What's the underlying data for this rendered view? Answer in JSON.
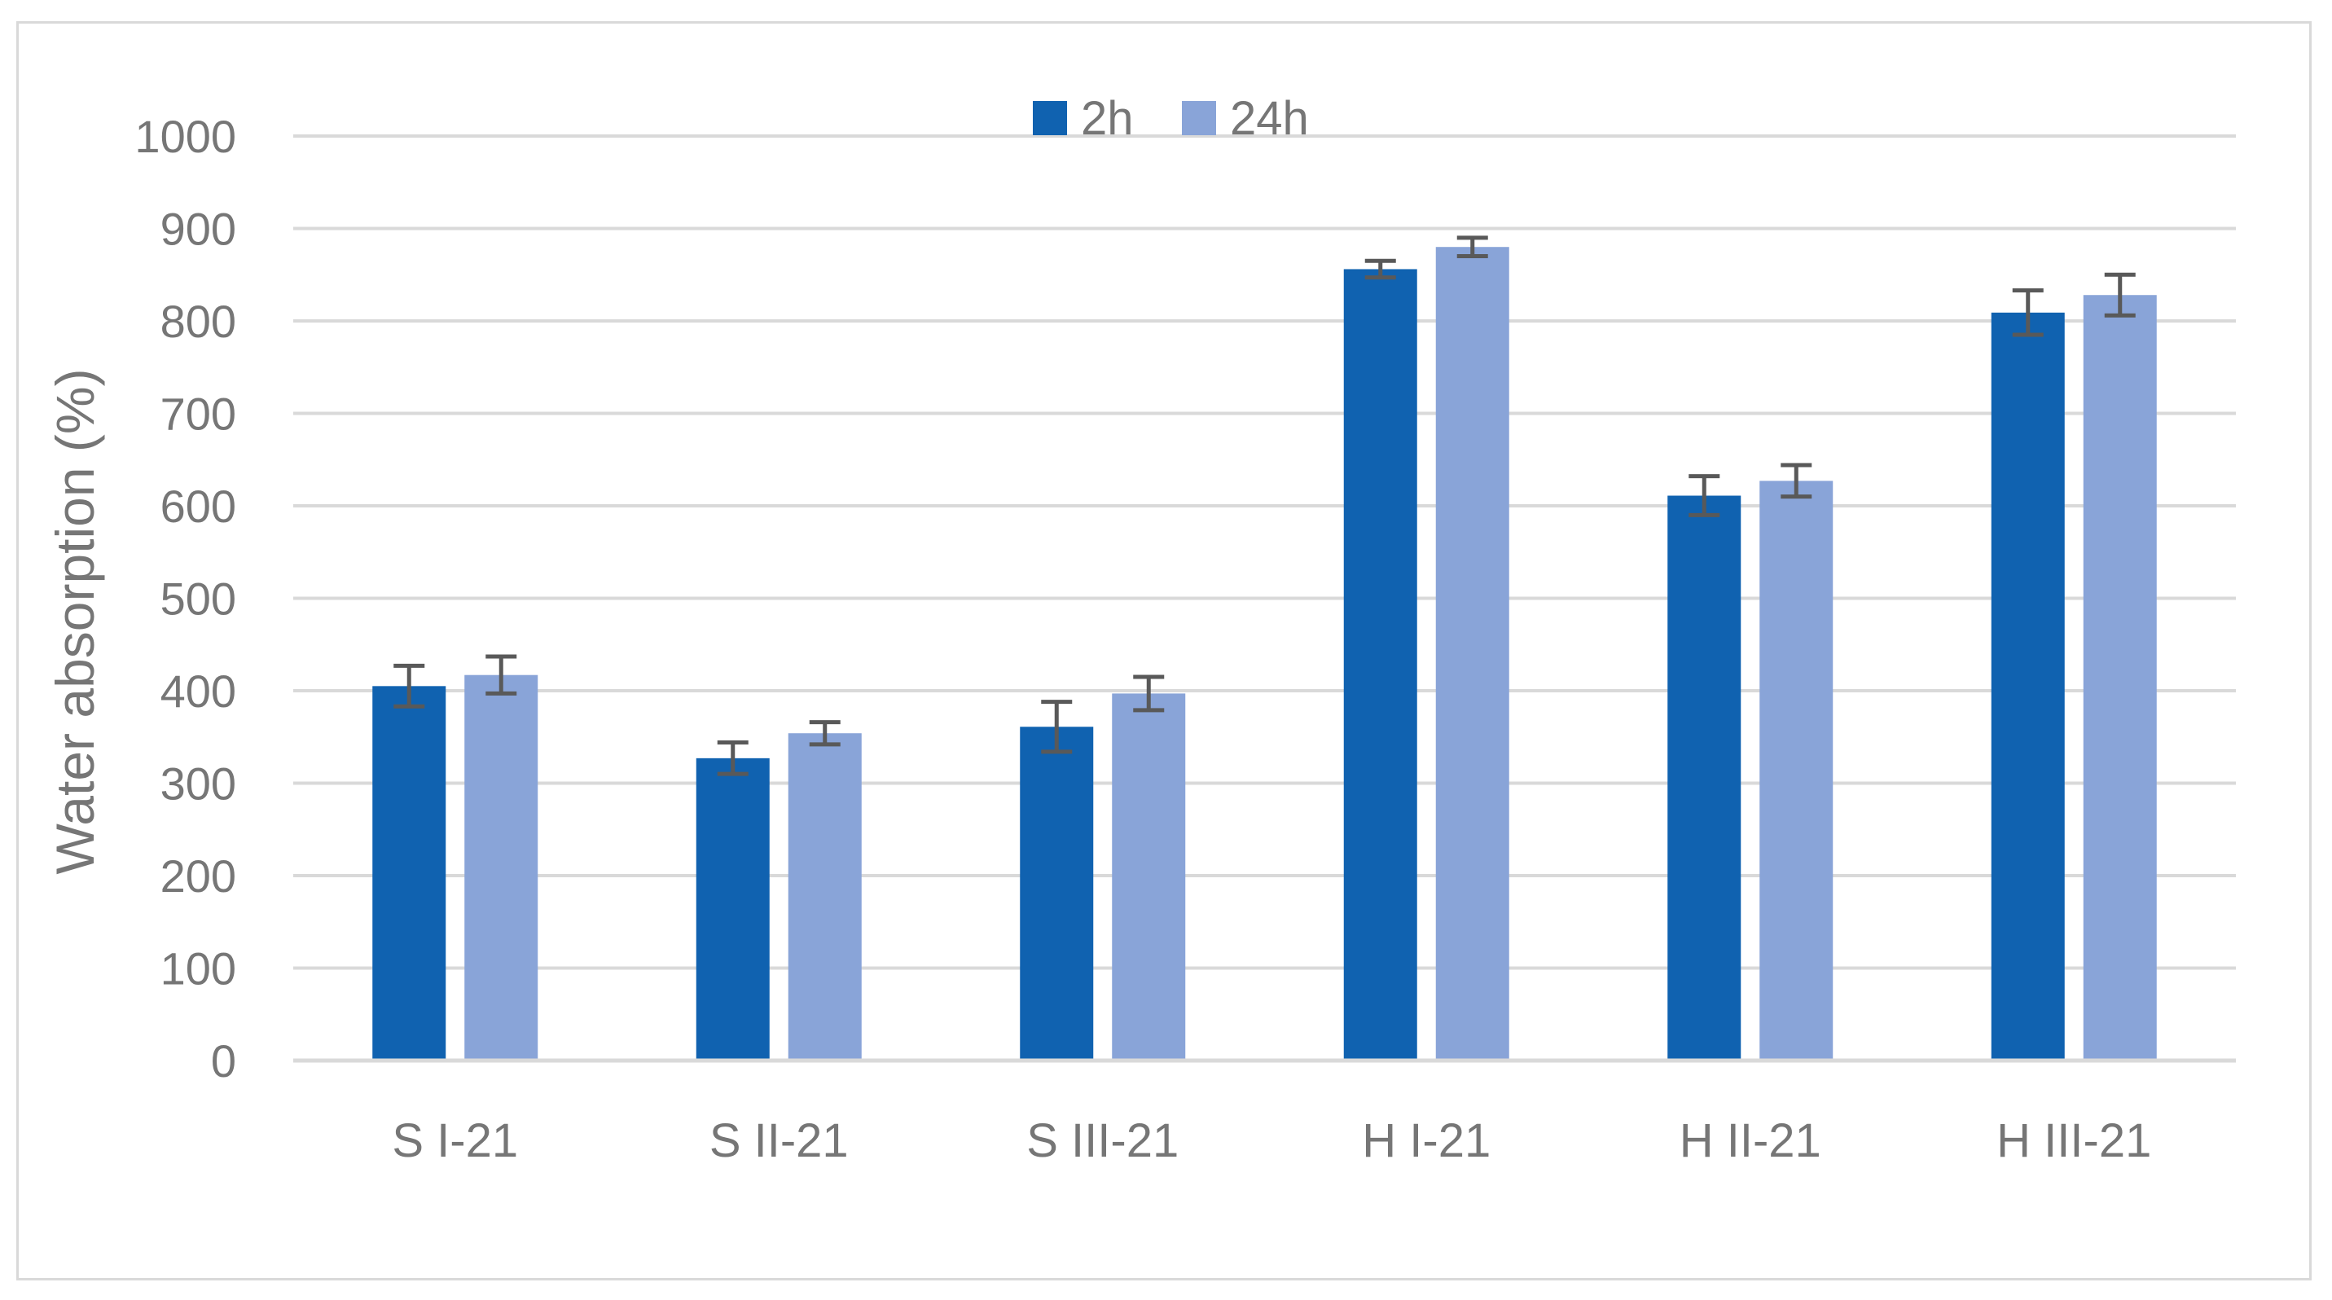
{
  "chart_data": {
    "type": "bar",
    "title": "",
    "xlabel": "",
    "ylabel": "Water absorption (%)",
    "ylim": [
      0,
      1000
    ],
    "yticks": [
      "0",
      "100",
      "200",
      "300",
      "400",
      "500",
      "600",
      "700",
      "800",
      "900",
      "1000"
    ],
    "grid": true,
    "legend_position": "top-center",
    "categories": [
      "S I-21",
      "S II-21",
      "S III-21",
      "H I-21",
      "H II-21",
      "H III-21"
    ],
    "series": [
      {
        "name": "2h",
        "color": "#1062b0",
        "values": [
          405,
          327,
          361,
          856,
          611,
          809
        ],
        "errors": [
          22,
          17,
          27,
          9,
          21,
          24
        ]
      },
      {
        "name": "24h",
        "color": "#89a4d8",
        "values": [
          417,
          354,
          397,
          880,
          627,
          828
        ],
        "errors": [
          20,
          12,
          18,
          10,
          17,
          22
        ]
      }
    ],
    "colors": {
      "grid": "#d9d9d9",
      "error_bar": "#595959",
      "text": "#767676",
      "frame": "#d9d9d9"
    }
  }
}
